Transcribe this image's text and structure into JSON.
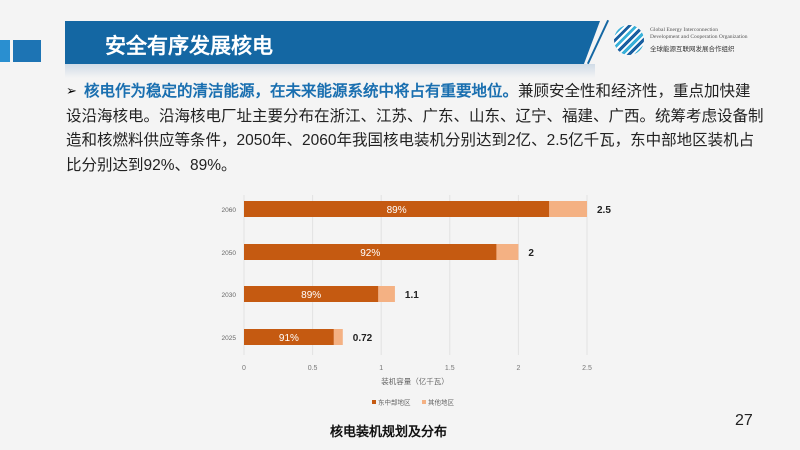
{
  "header": {
    "title": "安全有序发展核电",
    "org_en_1": "Global Energy Interconnection",
    "org_en_2": "Development and Cooperation Organization",
    "org_cn": "全球能源互联网发展合作组织"
  },
  "body": {
    "bullet": "➢",
    "highlight": "核电作为稳定的清洁能源，在未来能源系统中将占有重要地位。",
    "text": "兼顾安全性和经济性，重点加快建设沿海核电。沿海核电厂址主要分布在浙江、江苏、广东、山东、辽宁、福建、广西。统筹考虑设备制造和核燃料供应等条件，2050年、2060年我国核电装机分别达到2亿、2.5亿千瓦，东中部地区装机占比分别达到92%、89%。"
  },
  "chart_data": {
    "type": "bar",
    "orientation": "horizontal",
    "stacked": true,
    "categories": [
      "2025",
      "2030",
      "2050",
      "2060"
    ],
    "series": [
      {
        "name": "东中部地区",
        "values": [
          0.655,
          0.979,
          1.84,
          2.225
        ],
        "color": "#c55a11",
        "labels": [
          "91%",
          "89%",
          "92%",
          "89%"
        ]
      },
      {
        "name": "其他地区",
        "values": [
          0.065,
          0.121,
          0.16,
          0.275
        ],
        "color": "#f4b183"
      }
    ],
    "totals": [
      "0.72",
      "1.1",
      "2",
      "2.5"
    ],
    "xlabel": "装机容量（亿千瓦）",
    "xlim": [
      0,
      2.5
    ],
    "xticks": [
      "0",
      "0.5",
      "1",
      "1.5",
      "2",
      "2.5"
    ],
    "grid": true,
    "legend": "bottom"
  },
  "footer": {
    "caption": "核电装机规划及分布",
    "page": "27"
  }
}
